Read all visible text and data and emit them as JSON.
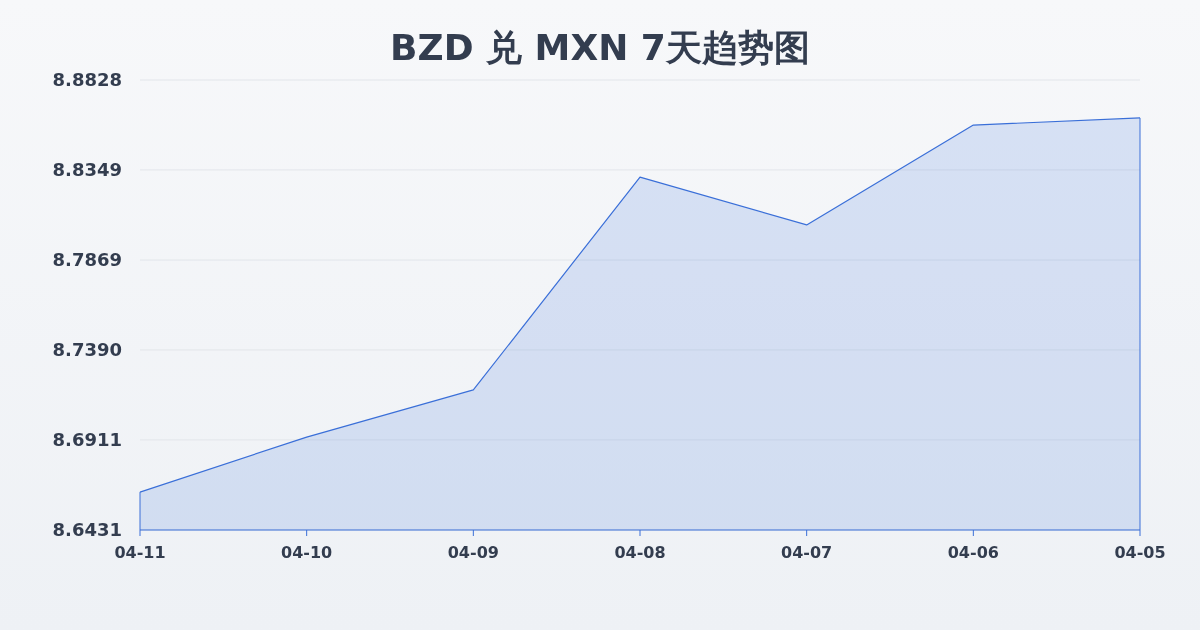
{
  "chart_data": {
    "type": "area",
    "title": "BZD 兑 MXN 7天趋势图",
    "categories": [
      "04-11",
      "04-10",
      "04-09",
      "04-08",
      "04-07",
      "04-06",
      "04-05"
    ],
    "series": [
      {
        "color": "#3a6fd8",
        "values": [
          8.6633,
          8.6926,
          8.7177,
          8.8311,
          8.8056,
          8.8588,
          8.8626
        ]
      }
    ],
    "ylim": [
      8.6431,
      8.8828
    ],
    "yticks": [
      8.6431,
      8.6911,
      {
        "value": 8.739,
        "label": "8.7390"
      },
      8.7869,
      8.8349,
      8.8828
    ],
    "grid": "y"
  }
}
